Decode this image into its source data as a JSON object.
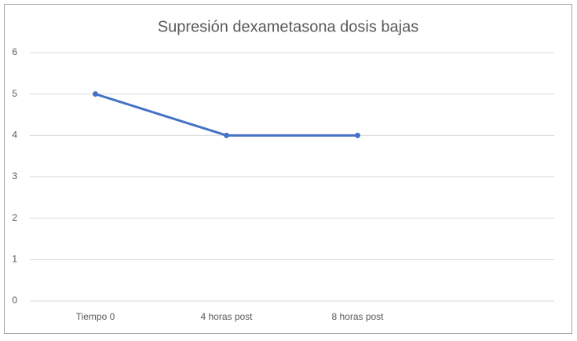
{
  "chart_data": {
    "type": "line",
    "title": "Supresión dexametasona dosis bajas",
    "categories": [
      "Tiempo 0",
      "4 horas post",
      "8 horas post",
      null
    ],
    "values": [
      5,
      4,
      4,
      null
    ],
    "color": "#4472c4",
    "ylim": [
      0,
      6
    ],
    "yticks": [
      0,
      1,
      2,
      3,
      4,
      5,
      6
    ],
    "grid": true
  }
}
